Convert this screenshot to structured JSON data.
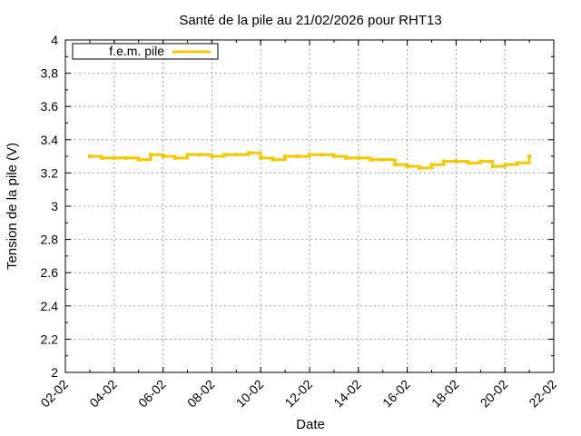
{
  "chart_data": {
    "type": "line",
    "title": "Santé de la pile au 21/02/2026 pour RHT13",
    "xlabel": "Date",
    "ylabel": "Tension de la pile (V)",
    "ylim": [
      2,
      4
    ],
    "yticks": [
      "2",
      "2.2",
      "2.4",
      "2.6",
      "2.8",
      "3",
      "3.2",
      "3.4",
      "3.6",
      "3.8",
      "4"
    ],
    "xticks": [
      "02-02",
      "04-02",
      "06-02",
      "08-02",
      "10-02",
      "12-02",
      "14-02",
      "16-02",
      "18-02",
      "20-02",
      "22-02"
    ],
    "grid": true,
    "legend_position": "top-left",
    "series": [
      {
        "name": "f.e.m. pile",
        "color": "#f5c800",
        "x": [
          "2026-02-03",
          "2026-02-03 12:00",
          "2026-02-04",
          "2026-02-04 12:00",
          "2026-02-05",
          "2026-02-05 12:00",
          "2026-02-06",
          "2026-02-06 12:00",
          "2026-02-07",
          "2026-02-07 12:00",
          "2026-02-08",
          "2026-02-08 12:00",
          "2026-02-09",
          "2026-02-09 12:00",
          "2026-02-10",
          "2026-02-10 12:00",
          "2026-02-11",
          "2026-02-11 12:00",
          "2026-02-12",
          "2026-02-12 12:00",
          "2026-02-13",
          "2026-02-13 12:00",
          "2026-02-14",
          "2026-02-14 12:00",
          "2026-02-15",
          "2026-02-15 12:00",
          "2026-02-16",
          "2026-02-16 12:00",
          "2026-02-17",
          "2026-02-17 12:00",
          "2026-02-18",
          "2026-02-18 12:00",
          "2026-02-19",
          "2026-02-19 12:00",
          "2026-02-20",
          "2026-02-20 12:00",
          "2026-02-21"
        ],
        "values": [
          3.3,
          3.29,
          3.29,
          3.29,
          3.28,
          3.31,
          3.3,
          3.29,
          3.31,
          3.31,
          3.3,
          3.31,
          3.31,
          3.32,
          3.29,
          3.28,
          3.3,
          3.3,
          3.31,
          3.31,
          3.3,
          3.29,
          3.29,
          3.28,
          3.28,
          3.25,
          3.24,
          3.23,
          3.25,
          3.27,
          3.27,
          3.26,
          3.27,
          3.24,
          3.25,
          3.26,
          3.3
        ]
      }
    ]
  }
}
